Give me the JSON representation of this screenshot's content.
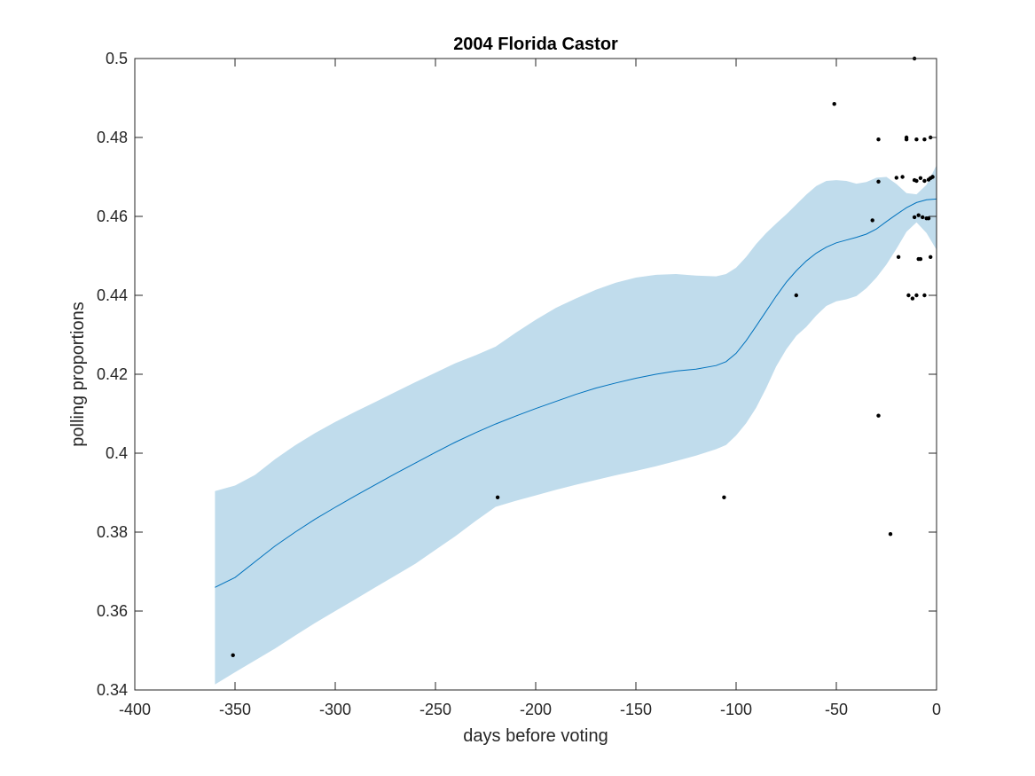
{
  "chart_data": {
    "type": "line",
    "title": "2004 Florida Castor",
    "xlabel": "days before voting",
    "ylabel": "polling proportions",
    "xlim": [
      -400,
      0
    ],
    "ylim": [
      0.34,
      0.5
    ],
    "xticks": [
      -400,
      -350,
      -300,
      -250,
      -200,
      -150,
      -100,
      -50,
      0
    ],
    "yticks": [
      0.34,
      0.36,
      0.38,
      0.4,
      0.42,
      0.44,
      0.46,
      0.48,
      0.5
    ],
    "xtick_labels": [
      "-400",
      "-350",
      "-300",
      "-250",
      "-200",
      "-150",
      "-100",
      "-50",
      "0"
    ],
    "ytick_labels": [
      "0.34",
      "0.36",
      "0.38",
      "0.4",
      "0.42",
      "0.44",
      "0.46",
      "0.48",
      "0.5"
    ],
    "grid": false,
    "colors": {
      "line": "#0072bd",
      "band": "#c0dcec",
      "points": "#000000",
      "axes": "#262626"
    },
    "series": [
      {
        "type": "area",
        "x": [
          -360,
          -350,
          -340,
          -330,
          -320,
          -310,
          -300,
          -290,
          -280,
          -270,
          -260,
          -250,
          -240,
          -230,
          -220,
          -210,
          -200,
          -190,
          -180,
          -170,
          -160,
          -150,
          -140,
          -130,
          -120,
          -110,
          -105,
          -100,
          -95,
          -90,
          -85,
          -80,
          -75,
          -70,
          -65,
          -60,
          -55,
          -50,
          -45,
          -40,
          -35,
          -30,
          -25,
          -20,
          -15,
          -10,
          -5,
          0
        ],
        "upper": [
          0.3904,
          0.3918,
          0.3945,
          0.3985,
          0.402,
          0.4051,
          0.4079,
          0.4105,
          0.413,
          0.4155,
          0.418,
          0.4204,
          0.4228,
          0.4248,
          0.427,
          0.4305,
          0.4338,
          0.4368,
          0.4392,
          0.4414,
          0.4432,
          0.4445,
          0.4452,
          0.4454,
          0.445,
          0.4448,
          0.4454,
          0.447,
          0.4497,
          0.453,
          0.4558,
          0.4582,
          0.4605,
          0.463,
          0.4655,
          0.4677,
          0.469,
          0.4692,
          0.469,
          0.4683,
          0.4687,
          0.4698,
          0.47,
          0.4682,
          0.4659,
          0.4656,
          0.468,
          0.473
        ],
        "lower": [
          0.3414,
          0.3445,
          0.3475,
          0.3505,
          0.3538,
          0.357,
          0.36,
          0.363,
          0.366,
          0.369,
          0.372,
          0.3755,
          0.379,
          0.3828,
          0.3864,
          0.3879,
          0.3893,
          0.3907,
          0.392,
          0.3932,
          0.3944,
          0.3955,
          0.3967,
          0.398,
          0.3994,
          0.401,
          0.4021,
          0.4045,
          0.4076,
          0.4115,
          0.4165,
          0.422,
          0.4263,
          0.4297,
          0.432,
          0.4349,
          0.4373,
          0.4385,
          0.439,
          0.4398,
          0.4418,
          0.4445,
          0.4478,
          0.4518,
          0.4561,
          0.4585,
          0.4558,
          0.4515
        ]
      },
      {
        "type": "line",
        "x": [
          -360,
          -350,
          -340,
          -330,
          -320,
          -310,
          -300,
          -290,
          -280,
          -270,
          -260,
          -250,
          -240,
          -230,
          -220,
          -210,
          -200,
          -190,
          -180,
          -170,
          -160,
          -150,
          -140,
          -130,
          -120,
          -110,
          -105,
          -100,
          -95,
          -90,
          -85,
          -80,
          -75,
          -70,
          -65,
          -60,
          -55,
          -50,
          -45,
          -40,
          -35,
          -30,
          -25,
          -20,
          -15,
          -10,
          -5,
          0
        ],
        "y": [
          0.366,
          0.3685,
          0.3725,
          0.3765,
          0.38,
          0.3833,
          0.3863,
          0.3892,
          0.392,
          0.3948,
          0.3975,
          0.4002,
          0.4028,
          0.4052,
          0.4074,
          0.4094,
          0.4113,
          0.4131,
          0.4149,
          0.4165,
          0.4178,
          0.419,
          0.42,
          0.4208,
          0.4213,
          0.4222,
          0.4232,
          0.4253,
          0.4285,
          0.4322,
          0.436,
          0.4398,
          0.4433,
          0.4462,
          0.4487,
          0.4507,
          0.4522,
          0.4533,
          0.454,
          0.4547,
          0.4555,
          0.4568,
          0.4587,
          0.4605,
          0.4622,
          0.4635,
          0.4642,
          0.4644
        ]
      },
      {
        "type": "scatter",
        "points": [
          [
            -351,
            0.3488
          ],
          [
            -219,
            0.3888
          ],
          [
            -106,
            0.3888
          ],
          [
            -70,
            0.44
          ],
          [
            -51,
            0.4885
          ],
          [
            -32,
            0.459
          ],
          [
            -29,
            0.4095
          ],
          [
            -29,
            0.4795
          ],
          [
            -29,
            0.4688
          ],
          [
            -23,
            0.3795
          ],
          [
            -20,
            0.4698
          ],
          [
            -19,
            0.4497
          ],
          [
            -17,
            0.47
          ],
          [
            -15,
            0.48
          ],
          [
            -15,
            0.4795
          ],
          [
            -14,
            0.44
          ],
          [
            -12,
            0.4392
          ],
          [
            -11,
            0.5
          ],
          [
            -11,
            0.4692
          ],
          [
            -11,
            0.4598
          ],
          [
            -10,
            0.4795
          ],
          [
            -10,
            0.44
          ],
          [
            -10,
            0.469
          ],
          [
            -9,
            0.4603
          ],
          [
            -9,
            0.4492
          ],
          [
            -8,
            0.4697
          ],
          [
            -8,
            0.4492
          ],
          [
            -7,
            0.4598
          ],
          [
            -6,
            0.469
          ],
          [
            -6,
            0.4795
          ],
          [
            -6,
            0.44
          ],
          [
            -5,
            0.4595
          ],
          [
            -4,
            0.4595
          ],
          [
            -4,
            0.4693
          ],
          [
            -3,
            0.48
          ],
          [
            -3,
            0.4697
          ],
          [
            -3,
            0.4497
          ],
          [
            -2,
            0.47
          ],
          [
            -2,
            0.47
          ]
        ]
      }
    ]
  }
}
